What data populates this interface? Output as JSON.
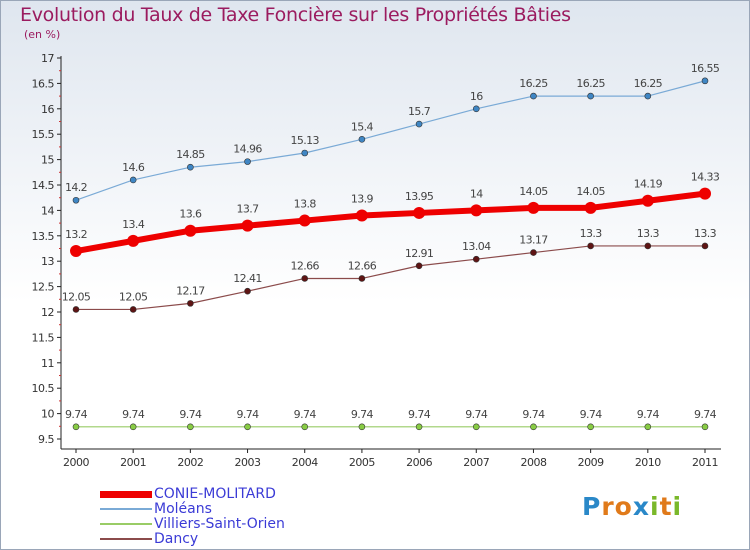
{
  "chart_data": {
    "type": "line",
    "title": "Evolution du Taux de Taxe Foncière sur les Propriétés Bâties",
    "subtitle": "(en %)",
    "x": [
      "2000",
      "2001",
      "2002",
      "2003",
      "2004",
      "2005",
      "2006",
      "2007",
      "2008",
      "2009",
      "2010",
      "2011"
    ],
    "ylim": [
      9.5,
      17
    ],
    "yticks": [
      "9.5",
      "10",
      "10.5",
      "11",
      "11.5",
      "12",
      "12.5",
      "13",
      "13.5",
      "14",
      "14.5",
      "15",
      "15.5",
      "16",
      "16.5",
      "17"
    ],
    "series": [
      {
        "name": "Moléans",
        "color": "#7aaad6",
        "dot": "#3f86c4",
        "width": 1.2,
        "r": 3,
        "values": [
          14.2,
          14.6,
          14.85,
          14.96,
          15.13,
          15.4,
          15.7,
          16,
          16.25,
          16.25,
          16.25,
          16.55
        ],
        "labels": [
          "14.2",
          "14.6",
          "14.85",
          "14.96",
          "15.13",
          "15.4",
          "15.7",
          "16",
          "16.25",
          "16.25",
          "16.25",
          "16.55"
        ]
      },
      {
        "name": "CONIE-MOLITARD",
        "color": "#ee0000",
        "dot": "#ee0000",
        "width": 6,
        "r": 6,
        "values": [
          13.2,
          13.4,
          13.6,
          13.7,
          13.8,
          13.9,
          13.95,
          14,
          14.05,
          14.05,
          14.19,
          14.33
        ],
        "labels": [
          "13.2",
          "13.4",
          "13.6",
          "13.7",
          "13.8",
          "13.9",
          "13.95",
          "14",
          "14.05",
          "14.05",
          "14.19",
          "14.33"
        ]
      },
      {
        "name": "Dancy",
        "color": "#8b4b4b",
        "dot": "#5e1414",
        "width": 1.2,
        "r": 3,
        "values": [
          12.05,
          12.05,
          12.17,
          12.41,
          12.66,
          12.66,
          12.91,
          13.04,
          13.17,
          13.3,
          13.3,
          13.3
        ],
        "labels": [
          "12.05",
          "12.05",
          "12.17",
          "12.41",
          "12.66",
          "12.66",
          "12.91",
          "13.04",
          "13.17",
          "13.3",
          "13.3",
          "13.3"
        ]
      },
      {
        "name": "Villiers-Saint-Orien",
        "color": "#99cc66",
        "dot": "#88cc44",
        "width": 1.2,
        "r": 3,
        "values": [
          9.74,
          9.74,
          9.74,
          9.74,
          9.74,
          9.74,
          9.74,
          9.74,
          9.74,
          9.74,
          9.74,
          9.74
        ],
        "labels": [
          "9.74",
          "9.74",
          "9.74",
          "9.74",
          "9.74",
          "9.74",
          "9.74",
          "9.74",
          "9.74",
          "9.74",
          "9.74",
          "9.74"
        ]
      }
    ],
    "legend": [
      {
        "name": "CONIE-MOLITARD",
        "color": "#ee0000",
        "thick": true
      },
      {
        "name": "Moléans",
        "color": "#7aaad6",
        "thick": false
      },
      {
        "name": "Villiers-Saint-Orien",
        "color": "#99cc66",
        "thick": false
      },
      {
        "name": "Dancy",
        "color": "#8b4b4b",
        "thick": false
      }
    ]
  },
  "logo": {
    "letters": [
      "P",
      "r",
      "o",
      "x",
      "i",
      "t",
      "i"
    ],
    "colors": [
      "#2a88c8",
      "#e07a1a",
      "#e07a1a",
      "#2a88c8",
      "#7ab82a",
      "#e07a1a",
      "#7ab82a"
    ]
  }
}
